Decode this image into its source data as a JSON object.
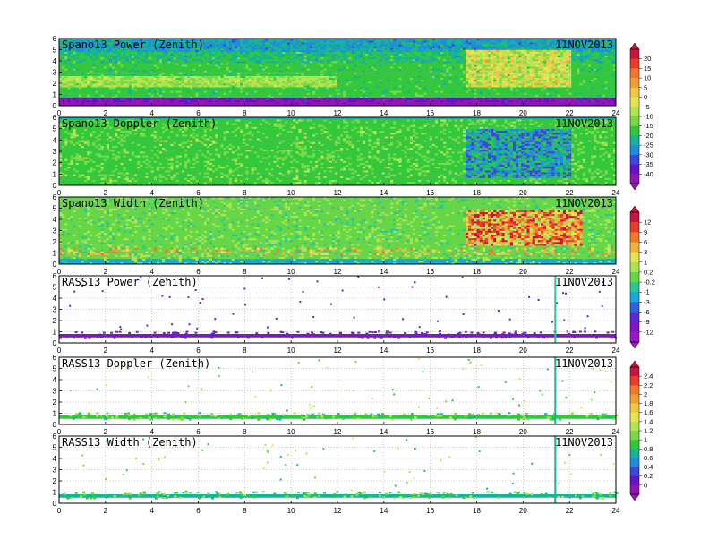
{
  "figure": {
    "date_label": "11NOV2013",
    "x_ticks": [
      "0",
      "2",
      "4",
      "6",
      "8",
      "10",
      "12",
      "14",
      "16",
      "18",
      "20",
      "22",
      "24"
    ],
    "y_ticks": [
      "0",
      "1",
      "2",
      "3",
      "4",
      "5",
      "6"
    ]
  },
  "chart_data": [
    {
      "type": "heatmap",
      "title": "Spano13 Power (Zenith)",
      "date": "11NOV2013",
      "xlim": [
        0,
        24
      ],
      "ylim": [
        0,
        6
      ],
      "colorbar": "power"
    },
    {
      "type": "heatmap",
      "title": "Spano13 Doppler (Zenith)",
      "date": "11NOV2013",
      "xlim": [
        0,
        24
      ],
      "ylim": [
        0,
        6
      ],
      "colorbar": "power"
    },
    {
      "type": "heatmap",
      "title": "Spano13 Width (Zenith)",
      "date": "11NOV2013",
      "xlim": [
        0,
        24
      ],
      "ylim": [
        0,
        6
      ],
      "colorbar": "width"
    },
    {
      "type": "heatmap",
      "title": "RASS13 Power (Zenith)",
      "date": "11NOV2013",
      "xlim": [
        0,
        24
      ],
      "ylim": [
        0,
        6
      ],
      "colorbar": "width"
    },
    {
      "type": "heatmap",
      "title": "RASS13 Doppler (Zenith)",
      "date": "11NOV2013",
      "xlim": [
        0,
        24
      ],
      "ylim": [
        0,
        6
      ],
      "colorbar": "rass"
    },
    {
      "type": "heatmap",
      "title": "RASS13 Width (Zenith)",
      "date": "11NOV2013",
      "xlim": [
        0,
        24
      ],
      "ylim": [
        0,
        6
      ],
      "colorbar": "rass"
    }
  ],
  "colorbars": {
    "power": {
      "labels": [
        "20",
        "15",
        "10",
        "5",
        "0",
        "-5",
        "-10",
        "-15",
        "-20",
        "-25",
        "-30",
        "-35",
        "-40"
      ],
      "colors": [
        "#c8143c",
        "#e63c28",
        "#f07828",
        "#f0a032",
        "#f0c846",
        "#e6e650",
        "#b4e650",
        "#78dc46",
        "#32c83c",
        "#14b496",
        "#1e8cdc",
        "#3c46dc",
        "#6414c8",
        "#9614b4"
      ]
    },
    "width": {
      "labels": [
        "12",
        "9",
        "6",
        "3",
        "1",
        "0.2",
        "-0.2",
        "-1",
        "-3",
        "-6",
        "-9",
        "-12"
      ],
      "colors": [
        "#c8143c",
        "#e63c28",
        "#f07828",
        "#f0b43c",
        "#e6e650",
        "#aae650",
        "#64d746",
        "#28c896",
        "#14aadc",
        "#2864dc",
        "#5a28d2",
        "#8214c8",
        "#a014c8"
      ]
    },
    "rass": {
      "labels": [
        "2.4",
        "2.2",
        "2",
        "1.8",
        "1.6",
        "1.4",
        "1.2",
        "1",
        "0.8",
        "0.6",
        "0.4",
        "0.2",
        "0"
      ],
      "colors": [
        "#c8143c",
        "#e63c28",
        "#f07828",
        "#f0a032",
        "#f0c846",
        "#e6e650",
        "#b4e650",
        "#78dc46",
        "#32c83c",
        "#14b496",
        "#1e8cdc",
        "#3c46dc",
        "#6414c8",
        "#9614b4"
      ]
    }
  }
}
